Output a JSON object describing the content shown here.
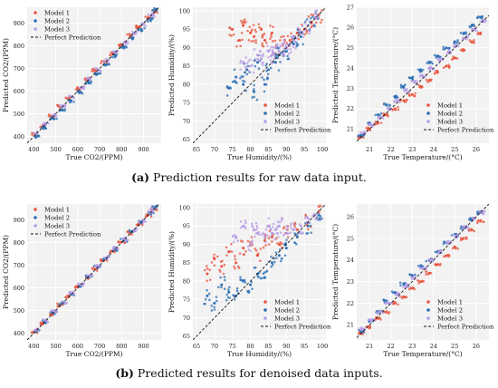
{
  "captions": {
    "a_letter": "(a)",
    "a_text": "Prediction results for raw data input.",
    "b_letter": "(b)",
    "b_text": "Predicted results for denoised data inputs."
  },
  "colors": {
    "model1": "#e7563f",
    "model2": "#2b6fb4",
    "model3": "#b79ce6",
    "perfect": "#111111",
    "background": "#f2f2f2",
    "grid": "#ffffff"
  },
  "chart_data": [
    {
      "type": "scatter",
      "panel": "a-co2",
      "xlabel": "True CO2/(PPM)",
      "ylabel": "Predicted CO2/(PPM)",
      "xlim": [
        370,
        980
      ],
      "ylim": [
        370,
        970
      ],
      "xticks": [
        400,
        500,
        600,
        700,
        800,
        900
      ],
      "yticks": [
        400,
        500,
        600,
        700,
        800,
        900
      ],
      "legend": [
        "Model 1",
        "Model 2",
        "Model 3",
        "Perfect Prediction"
      ],
      "legend_position": "top-left",
      "grid": true,
      "series": [
        {
          "name": "Model 1",
          "x": [
            405,
            440,
            480,
            520,
            560,
            600,
            640,
            680,
            720,
            760,
            800,
            840,
            880,
            920,
            950
          ],
          "y": [
            410,
            448,
            490,
            532,
            572,
            612,
            652,
            690,
            728,
            766,
            806,
            846,
            884,
            922,
            948
          ]
        },
        {
          "name": "Model 2",
          "x": [
            410,
            450,
            490,
            530,
            570,
            610,
            650,
            690,
            730,
            770,
            810,
            850,
            890,
            930,
            955
          ],
          "y": [
            400,
            440,
            478,
            518,
            558,
            596,
            636,
            676,
            716,
            755,
            795,
            835,
            872,
            915,
            960
          ]
        },
        {
          "name": "Model 3",
          "x": [
            415,
            455,
            495,
            535,
            575,
            615,
            655,
            695,
            735,
            775,
            815,
            855,
            895,
            935,
            945
          ],
          "y": [
            416,
            455,
            494,
            535,
            575,
            614,
            655,
            694,
            735,
            774,
            815,
            855,
            895,
            933,
            942
          ]
        }
      ]
    },
    {
      "type": "scatter",
      "panel": "a-hum",
      "xlabel": "True Humidity/(%)",
      "ylabel": "Predicted Humidity/(%)",
      "xlim": [
        64,
        101
      ],
      "ylim": [
        64,
        101
      ],
      "xticks": [
        65,
        70,
        75,
        80,
        85,
        90,
        95,
        100
      ],
      "yticks": [
        65,
        70,
        75,
        80,
        85,
        90,
        95,
        100
      ],
      "legend": [
        "Model 1",
        "Model 2",
        "Model 3",
        "Perfect Prediction"
      ],
      "legend_position": "bottom-right",
      "grid": true,
      "series": [
        {
          "name": "Model 1",
          "x": [
            75,
            77,
            78,
            80,
            81,
            83,
            84,
            86,
            87,
            89,
            91,
            93,
            95,
            97,
            99
          ],
          "y": [
            95,
            92,
            96,
            94,
            93,
            95,
            92,
            94,
            90,
            91,
            92,
            94,
            95,
            97,
            99
          ]
        },
        {
          "name": "Model 2",
          "x": [
            74,
            76,
            78,
            79,
            81,
            82,
            84,
            85,
            87,
            88,
            90,
            92,
            94,
            96,
            98
          ],
          "y": [
            79,
            82,
            80,
            84,
            78,
            86,
            80,
            84,
            86,
            88,
            89,
            91,
            93,
            96,
            98
          ]
        },
        {
          "name": "Model 3",
          "x": [
            78,
            80,
            82,
            83,
            85,
            86,
            87,
            88,
            89,
            90,
            91,
            92,
            94,
            96,
            98
          ],
          "y": [
            86,
            85,
            88,
            87,
            89,
            88,
            90,
            89,
            91,
            90,
            91,
            92,
            94,
            96,
            98
          ]
        }
      ]
    },
    {
      "type": "scatter",
      "panel": "a-temp",
      "xlabel": "True Temperature/(°C)",
      "ylabel": "Predicted Temperature/(°C)",
      "xlim": [
        20.4,
        26.6
      ],
      "ylim": [
        20.3,
        27.0
      ],
      "xticks": [
        21,
        22,
        23,
        24,
        25,
        26
      ],
      "yticks": [
        21,
        22,
        23,
        24,
        25,
        26,
        27
      ],
      "legend": [
        "Model 1",
        "Model 2",
        "Model 3",
        "Perfect Prediction"
      ],
      "legend_position": "bottom-right",
      "grid": true,
      "series": [
        {
          "name": "Model 1",
          "x": [
            20.6,
            21.0,
            21.4,
            21.8,
            22.2,
            22.6,
            23.0,
            23.4,
            23.8,
            24.2,
            24.6,
            25.0,
            25.4,
            25.8,
            26.2
          ],
          "y": [
            20.6,
            21.0,
            21.3,
            21.7,
            22.0,
            22.4,
            22.7,
            23.1,
            23.4,
            23.8,
            24.1,
            24.5,
            24.9,
            25.3,
            25.7
          ]
        },
        {
          "name": "Model 2",
          "x": [
            20.6,
            21.0,
            21.4,
            21.8,
            22.2,
            22.6,
            23.0,
            23.4,
            23.8,
            24.2,
            24.6,
            25.0,
            25.4,
            25.8,
            26.2
          ],
          "y": [
            20.7,
            21.3,
            21.7,
            22.2,
            22.6,
            23.1,
            23.5,
            23.9,
            24.3,
            24.6,
            25.0,
            25.3,
            25.7,
            26.1,
            26.5
          ]
        },
        {
          "name": "Model 3",
          "x": [
            20.7,
            21.1,
            21.5,
            21.9,
            22.3,
            22.7,
            23.1,
            23.5,
            23.9,
            24.3,
            24.7,
            25.1,
            25.5,
            25.9,
            26.3
          ],
          "y": [
            20.8,
            21.2,
            21.6,
            22.0,
            22.4,
            22.9,
            23.3,
            23.6,
            24.0,
            24.4,
            24.8,
            25.1,
            25.5,
            25.9,
            26.3
          ]
        }
      ]
    },
    {
      "type": "scatter",
      "panel": "b-co2",
      "xlabel": "True CO2/(PPM)",
      "ylabel": "Predicted CO2/(PPM)",
      "xlim": [
        370,
        980
      ],
      "ylim": [
        370,
        970
      ],
      "xticks": [
        400,
        500,
        600,
        700,
        800,
        900
      ],
      "yticks": [
        400,
        500,
        600,
        700,
        800,
        900
      ],
      "legend": [
        "Model 1",
        "Model 2",
        "Model 3",
        "Perfect Prediction"
      ],
      "legend_position": "top-left",
      "grid": true,
      "series": [
        {
          "name": "Model 1",
          "x": [
            405,
            440,
            480,
            520,
            560,
            600,
            640,
            680,
            720,
            760,
            800,
            840,
            880,
            920,
            950
          ],
          "y": [
            408,
            444,
            484,
            524,
            563,
            603,
            643,
            683,
            722,
            762,
            802,
            842,
            882,
            921,
            949
          ]
        },
        {
          "name": "Model 2",
          "x": [
            410,
            450,
            490,
            530,
            570,
            610,
            650,
            690,
            730,
            770,
            810,
            850,
            890,
            930,
            955
          ],
          "y": [
            410,
            451,
            490,
            531,
            571,
            610,
            651,
            690,
            731,
            770,
            810,
            850,
            891,
            930,
            956
          ]
        },
        {
          "name": "Model 3",
          "x": [
            415,
            455,
            495,
            535,
            575,
            615,
            655,
            695,
            735,
            775,
            815,
            855,
            895,
            935,
            945
          ],
          "y": [
            414,
            454,
            495,
            534,
            575,
            615,
            654,
            695,
            734,
            775,
            815,
            854,
            895,
            934,
            945
          ]
        }
      ]
    },
    {
      "type": "scatter",
      "panel": "b-hum",
      "xlabel": "True Humidity/(%)",
      "ylabel": "Predicted Humidity/(%)",
      "xlim": [
        64,
        101
      ],
      "ylim": [
        64,
        101
      ],
      "xticks": [
        65,
        70,
        75,
        80,
        85,
        90,
        95,
        100
      ],
      "yticks": [
        65,
        70,
        75,
        80,
        85,
        90,
        95,
        100
      ],
      "legend": [
        "Model 1",
        "Model 2",
        "Model 3",
        "Perfect Prediction"
      ],
      "legend_position": "bottom-right",
      "grid": true,
      "series": [
        {
          "name": "Model 1",
          "x": [
            68,
            70,
            72,
            74,
            76,
            78,
            80,
            82,
            84,
            86,
            88,
            90,
            93,
            96,
            99
          ],
          "y": [
            82,
            86,
            84,
            88,
            85,
            89,
            90,
            87,
            91,
            92,
            90,
            93,
            94,
            96,
            99
          ]
        },
        {
          "name": "Model 2",
          "x": [
            68,
            70,
            72,
            74,
            76,
            78,
            80,
            82,
            84,
            86,
            88,
            90,
            93,
            96,
            99
          ],
          "y": [
            76,
            74,
            79,
            77,
            76,
            80,
            79,
            82,
            81,
            85,
            87,
            89,
            92,
            95,
            98
          ]
        },
        {
          "name": "Model 3",
          "x": [
            76,
            78,
            80,
            81,
            82,
            84,
            85,
            86,
            87,
            88,
            90,
            92,
            94,
            96,
            98
          ],
          "y": [
            92,
            95,
            90,
            94,
            93,
            92,
            95,
            93,
            94,
            95,
            93,
            94,
            95,
            96,
            98
          ]
        }
      ]
    },
    {
      "type": "scatter",
      "panel": "b-temp",
      "xlabel": "True Temperature/(°C)",
      "ylabel": "Predicted Temperature/(°C)",
      "xlim": [
        20.4,
        26.6
      ],
      "ylim": [
        20.3,
        26.6
      ],
      "xticks": [
        21,
        22,
        23,
        24,
        25,
        26
      ],
      "yticks": [
        21,
        22,
        23,
        24,
        25,
        26
      ],
      "legend": [
        "Model 1",
        "Model 2",
        "Model 3",
        "Perfect Prediction"
      ],
      "legend_position": "bottom-right",
      "grid": true,
      "series": [
        {
          "name": "Model 1",
          "x": [
            20.6,
            21.0,
            21.4,
            21.8,
            22.2,
            22.6,
            23.0,
            23.4,
            23.8,
            24.2,
            24.6,
            25.0,
            25.4,
            25.8,
            26.2
          ],
          "y": [
            20.6,
            20.9,
            21.3,
            21.6,
            22.0,
            22.3,
            22.7,
            23.0,
            23.4,
            23.8,
            24.2,
            24.6,
            25.0,
            25.4,
            25.8
          ]
        },
        {
          "name": "Model 2",
          "x": [
            20.6,
            21.0,
            21.4,
            21.8,
            22.2,
            22.6,
            23.0,
            23.4,
            23.8,
            24.2,
            24.6,
            25.0,
            25.4,
            25.8,
            26.2
          ],
          "y": [
            20.7,
            21.2,
            21.6,
            22.1,
            22.5,
            22.9,
            23.3,
            23.7,
            24.0,
            24.4,
            24.8,
            25.2,
            25.5,
            25.9,
            26.2
          ]
        },
        {
          "name": "Model 3",
          "x": [
            20.7,
            21.1,
            21.5,
            21.9,
            22.3,
            22.7,
            23.1,
            23.5,
            23.9,
            24.3,
            24.7,
            25.1,
            25.5,
            25.9,
            26.3
          ],
          "y": [
            20.8,
            21.2,
            21.6,
            22.0,
            22.4,
            22.8,
            23.2,
            23.6,
            24.0,
            24.4,
            24.8,
            25.1,
            25.5,
            25.9,
            26.2
          ]
        }
      ]
    }
  ]
}
